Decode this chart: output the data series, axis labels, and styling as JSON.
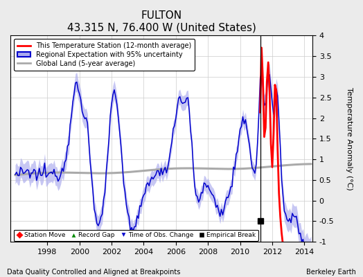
{
  "title": "FULTON",
  "subtitle": "43.315 N, 76.400 W (United States)",
  "ylabel": "Temperature Anomaly (°C)",
  "footer_left": "Data Quality Controlled and Aligned at Breakpoints",
  "footer_right": "Berkeley Earth",
  "xlim": [
    1995.7,
    2014.5
  ],
  "ylim": [
    -1,
    4
  ],
  "yticks": [
    -1,
    -0.5,
    0,
    0.5,
    1,
    1.5,
    2,
    2.5,
    3,
    3.5,
    4
  ],
  "xticks": [
    1998,
    2000,
    2002,
    2004,
    2006,
    2008,
    2010,
    2012,
    2014
  ],
  "vertical_line_x": 2011.25,
  "empirical_break_x": 2011.25,
  "empirical_break_y": -0.5,
  "colors": {
    "red_line": "#FF0000",
    "blue_line": "#0000CC",
    "blue_fill": "#AAAAEE",
    "gray_line": "#AAAAAA",
    "background": "#EBEBEB",
    "plot_bg": "#FFFFFF",
    "grid": "#CCCCCC"
  },
  "legend_markers": {
    "station_move_color": "#FF0000",
    "record_gap_color": "#008800",
    "obs_change_color": "#0000CC",
    "empirical_break_color": "#000000"
  }
}
